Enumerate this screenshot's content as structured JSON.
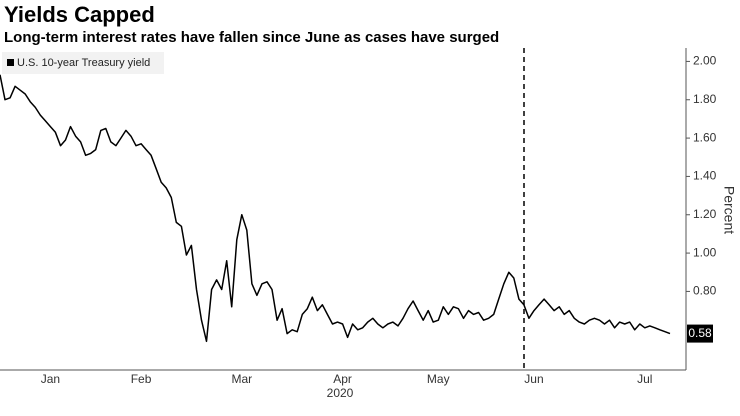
{
  "chart_data": {
    "type": "line",
    "title": "Yields Capped",
    "subtitle": "Long-term interest rates have fallen since June as cases have surged",
    "ylabel": "Percent",
    "xlabel": "2020",
    "categories": [
      null,
      null,
      null,
      null,
      null,
      null,
      null,
      null,
      null,
      null,
      "Jan",
      null,
      null,
      null,
      null,
      null,
      null,
      null,
      null,
      null,
      null,
      null,
      null,
      null,
      null,
      null,
      null,
      null,
      "Feb",
      null,
      null,
      null,
      null,
      null,
      null,
      null,
      null,
      null,
      null,
      null,
      null,
      null,
      null,
      null,
      null,
      null,
      null,
      null,
      "Mar",
      null,
      null,
      null,
      null,
      null,
      null,
      null,
      null,
      null,
      null,
      null,
      null,
      null,
      null,
      null,
      null,
      null,
      null,
      null,
      "Apr",
      null,
      null,
      null,
      null,
      null,
      null,
      null,
      null,
      null,
      null,
      null,
      null,
      null,
      null,
      null,
      null,
      null,
      null,
      "May",
      null,
      null,
      null,
      null,
      null,
      null,
      null,
      null,
      null,
      null,
      null,
      null,
      null,
      null,
      null,
      null,
      null,
      null,
      "Jun",
      null,
      null,
      null,
      null,
      null,
      null,
      null,
      null,
      null,
      null,
      null,
      null,
      null,
      null,
      null,
      null,
      null,
      null,
      null,
      null,
      null,
      "Jul",
      null,
      null,
      null,
      null,
      null
    ],
    "series": [
      {
        "name": "U.S. 10-year Treasury yield",
        "color": "#000000",
        "values": [
          1.93,
          1.8,
          1.81,
          1.87,
          1.85,
          1.83,
          1.79,
          1.76,
          1.72,
          1.69,
          1.66,
          1.63,
          1.56,
          1.59,
          1.66,
          1.61,
          1.58,
          1.51,
          1.52,
          1.54,
          1.64,
          1.65,
          1.58,
          1.56,
          1.6,
          1.64,
          1.61,
          1.56,
          1.57,
          1.54,
          1.51,
          1.44,
          1.37,
          1.34,
          1.29,
          1.16,
          1.14,
          0.99,
          1.04,
          0.81,
          0.65,
          0.54,
          0.81,
          0.86,
          0.81,
          0.96,
          0.72,
          1.07,
          1.2,
          1.12,
          0.84,
          0.78,
          0.84,
          0.85,
          0.81,
          0.65,
          0.71,
          0.58,
          0.6,
          0.59,
          0.68,
          0.71,
          0.77,
          0.7,
          0.73,
          0.68,
          0.63,
          0.64,
          0.63,
          0.56,
          0.63,
          0.6,
          0.61,
          0.64,
          0.66,
          0.63,
          0.61,
          0.63,
          0.64,
          0.62,
          0.66,
          0.71,
          0.75,
          0.7,
          0.65,
          0.7,
          0.64,
          0.65,
          0.72,
          0.68,
          0.72,
          0.71,
          0.66,
          0.7,
          0.68,
          0.69,
          0.65,
          0.66,
          0.68,
          0.76,
          0.84,
          0.9,
          0.87,
          0.76,
          0.73,
          0.66,
          0.7,
          0.73,
          0.76,
          0.73,
          0.7,
          0.72,
          0.68,
          0.7,
          0.66,
          0.64,
          0.63,
          0.65,
          0.66,
          0.65,
          0.63,
          0.65,
          0.61,
          0.64,
          0.63,
          0.64,
          0.6,
          0.63,
          0.61,
          0.62,
          0.61,
          0.6,
          0.59,
          0.58
        ]
      }
    ],
    "ylim": [
      0.39,
      2.07
    ],
    "yticks": [
      {
        "value": 0.8,
        "label": "0.80"
      },
      {
        "value": 1.0,
        "label": "1.00"
      },
      {
        "value": 1.2,
        "label": "1.20"
      },
      {
        "value": 1.4,
        "label": "1.40"
      },
      {
        "value": 1.6,
        "label": "1.60"
      },
      {
        "value": 1.8,
        "label": "1.80"
      },
      {
        "value": 2.0,
        "label": "2.00"
      }
    ],
    "grid": false,
    "legend": "upper left"
  }
}
